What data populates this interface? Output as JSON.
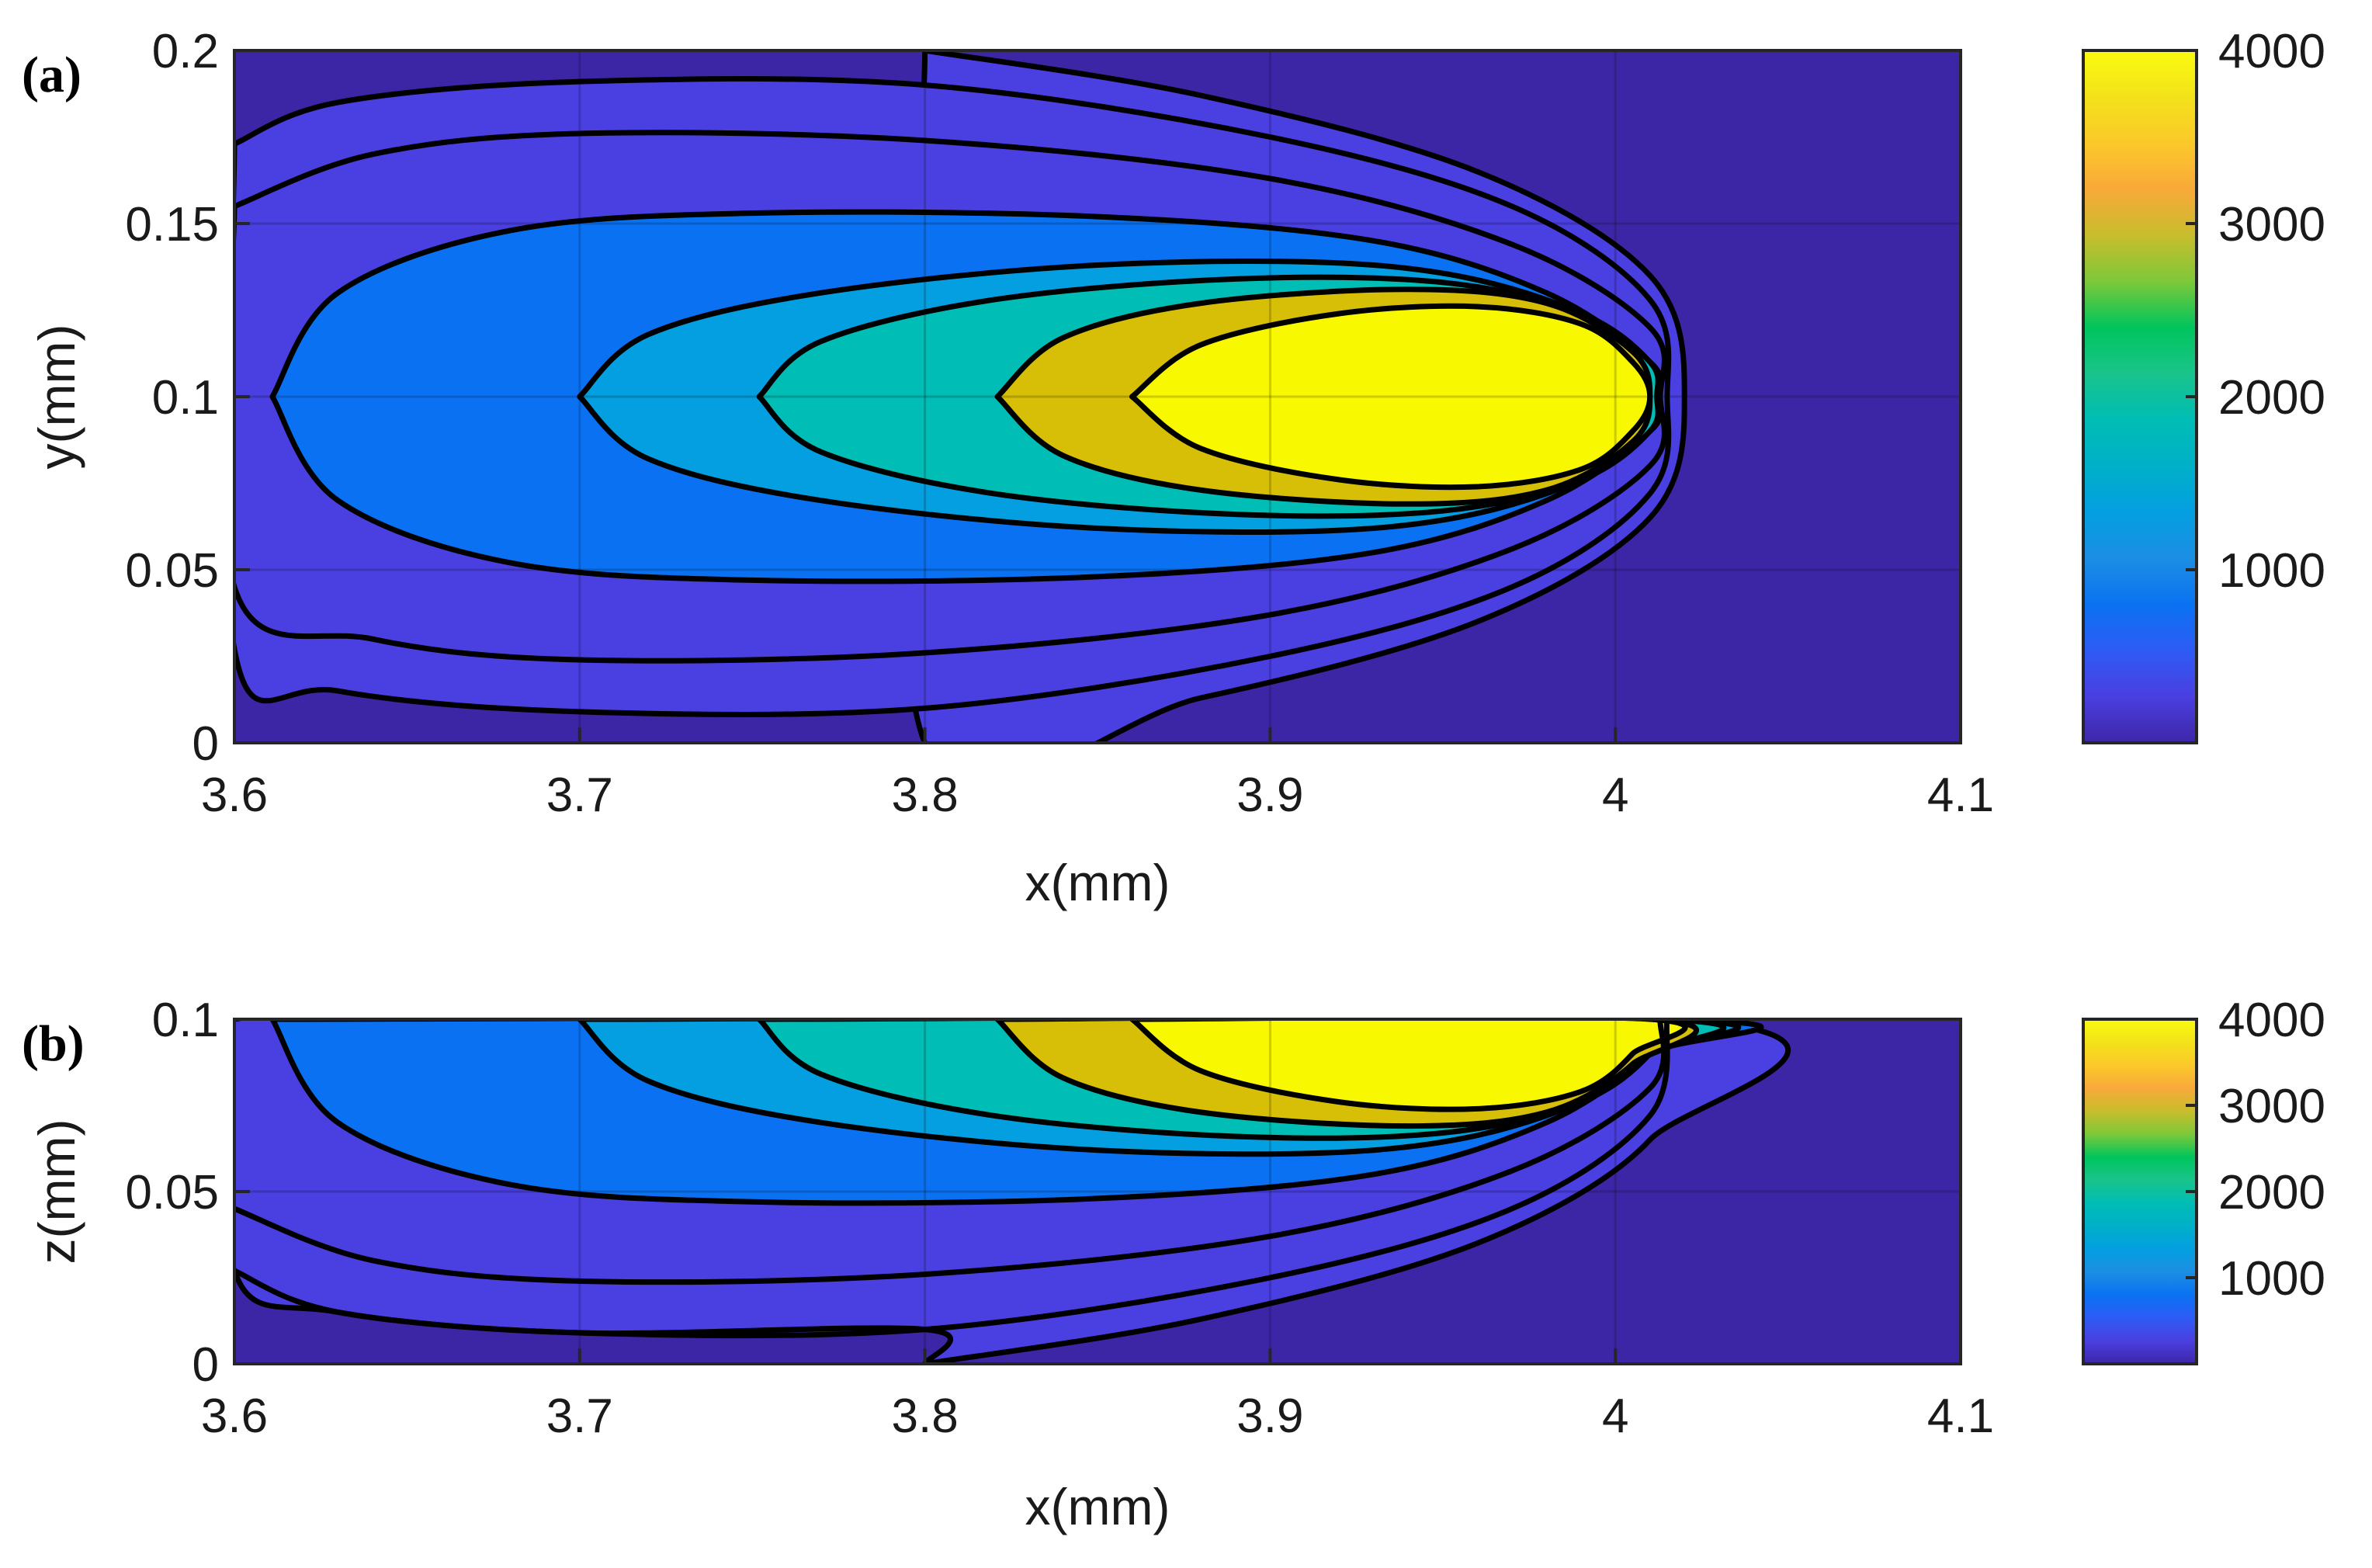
{
  "chart_data": [
    {
      "type": "heatmap",
      "panel_label": "(a)",
      "xlabel": "x(mm)",
      "ylabel": "y(mm)",
      "xlim": [
        3.6,
        4.1
      ],
      "ylim": [
        0,
        0.2
      ],
      "x_ticks": [
        "3.6",
        "3.7",
        "3.8",
        "3.9",
        "4",
        "4.1"
      ],
      "y_ticks": [
        "0",
        "0.05",
        "0.1",
        "0.15",
        "0.2"
      ],
      "grid": true,
      "background_color": "#3d26a6",
      "contour_levels": [
        {
          "color": "#4a3fe0",
          "boundary": [
            [
              3.8,
              0.2
            ],
            [
              3.88,
              0.187
            ],
            [
              3.96,
              0.165
            ],
            [
              4.01,
              0.135
            ],
            [
              4.02,
              0.1
            ],
            [
              4.01,
              0.065
            ],
            [
              3.96,
              0.035
            ],
            [
              3.88,
              0.013
            ],
            [
              3.8,
              0.0
            ]
          ]
        },
        {
          "color": "#4a3fe0",
          "boundary": [
            [
              3.6,
              0.173
            ],
            [
              3.63,
              0.185
            ],
            [
              3.7,
              0.191
            ],
            [
              3.8,
              0.19
            ],
            [
              3.9,
              0.175
            ],
            [
              3.97,
              0.155
            ],
            [
              4.01,
              0.128
            ],
            [
              4.015,
              0.1
            ],
            [
              4.01,
              0.072
            ],
            [
              3.97,
              0.045
            ],
            [
              3.9,
              0.025
            ],
            [
              3.8,
              0.01
            ],
            [
              3.7,
              0.009
            ],
            [
              3.63,
              0.015
            ],
            [
              3.6,
              0.027
            ]
          ]
        },
        {
          "color": "#4a3fe0",
          "boundary": [
            [
              3.6,
              0.155
            ],
            [
              3.64,
              0.17
            ],
            [
              3.7,
              0.176
            ],
            [
              3.8,
              0.174
            ],
            [
              3.9,
              0.163
            ],
            [
              3.97,
              0.144
            ],
            [
              4.01,
              0.12
            ],
            [
              4.013,
              0.1
            ],
            [
              4.01,
              0.08
            ],
            [
              3.97,
              0.056
            ],
            [
              3.9,
              0.037
            ],
            [
              3.8,
              0.026
            ],
            [
              3.7,
              0.024
            ],
            [
              3.64,
              0.03
            ],
            [
              3.6,
              0.045
            ]
          ]
        },
        {
          "color": "#0a72f2",
          "boundary": [
            [
              3.611,
              0.1
            ],
            [
              3.63,
              0.13
            ],
            [
              3.68,
              0.148
            ],
            [
              3.75,
              0.153
            ],
            [
              3.85,
              0.152
            ],
            [
              3.93,
              0.145
            ],
            [
              3.98,
              0.13
            ],
            [
              4.01,
              0.11
            ],
            [
              4.012,
              0.1
            ],
            [
              4.01,
              0.09
            ],
            [
              3.98,
              0.07
            ],
            [
              3.93,
              0.055
            ],
            [
              3.85,
              0.048
            ],
            [
              3.75,
              0.047
            ],
            [
              3.68,
              0.052
            ],
            [
              3.63,
              0.07
            ]
          ]
        },
        {
          "color": "#049fe1",
          "boundary": [
            [
              3.7,
              0.1
            ],
            [
              3.72,
              0.118
            ],
            [
              3.77,
              0.13
            ],
            [
              3.85,
              0.138
            ],
            [
              3.93,
              0.138
            ],
            [
              3.98,
              0.128
            ],
            [
              4.01,
              0.11
            ],
            [
              4.012,
              0.1
            ],
            [
              4.01,
              0.09
            ],
            [
              3.98,
              0.072
            ],
            [
              3.93,
              0.062
            ],
            [
              3.85,
              0.062
            ],
            [
              3.77,
              0.07
            ],
            [
              3.72,
              0.082
            ]
          ]
        },
        {
          "color": "#00bdb5",
          "boundary": [
            [
              3.752,
              0.1
            ],
            [
              3.77,
              0.116
            ],
            [
              3.82,
              0.128
            ],
            [
              3.89,
              0.134
            ],
            [
              3.95,
              0.133
            ],
            [
              3.99,
              0.124
            ],
            [
              4.01,
              0.11
            ],
            [
              4.012,
              0.1
            ],
            [
              4.01,
              0.09
            ],
            [
              3.99,
              0.076
            ],
            [
              3.95,
              0.067
            ],
            [
              3.89,
              0.066
            ],
            [
              3.82,
              0.072
            ],
            [
              3.77,
              0.084
            ]
          ]
        },
        {
          "color": "#d6bf06",
          "boundary": [
            [
              3.821,
              0.1
            ],
            [
              3.84,
              0.117
            ],
            [
              3.88,
              0.127
            ],
            [
              3.94,
              0.131
            ],
            [
              3.98,
              0.127
            ],
            [
              4.005,
              0.113
            ],
            [
              4.01,
              0.1
            ],
            [
              4.005,
              0.087
            ],
            [
              3.98,
              0.073
            ],
            [
              3.94,
              0.069
            ],
            [
              3.88,
              0.073
            ],
            [
              3.84,
              0.083
            ]
          ]
        },
        {
          "color": "#f8f800",
          "boundary": [
            [
              3.86,
              0.1
            ],
            [
              3.88,
              0.115
            ],
            [
              3.92,
              0.124
            ],
            [
              3.96,
              0.126
            ],
            [
              3.99,
              0.121
            ],
            [
              4.005,
              0.11
            ],
            [
              4.01,
              0.1
            ],
            [
              4.005,
              0.09
            ],
            [
              3.99,
              0.079
            ],
            [
              3.96,
              0.074
            ],
            [
              3.92,
              0.076
            ],
            [
              3.88,
              0.085
            ]
          ]
        }
      ],
      "colorbar": {
        "ticks": [
          "1000",
          "2000",
          "3000",
          "4000"
        ],
        "range": [
          0,
          4000
        ]
      }
    },
    {
      "type": "heatmap",
      "panel_label": "(b)",
      "xlabel": "x(mm)",
      "ylabel": "z(mm)",
      "xlim": [
        3.6,
        4.1
      ],
      "ylim": [
        0,
        0.1
      ],
      "x_ticks": [
        "3.6",
        "3.7",
        "3.8",
        "3.9",
        "4",
        "4.1"
      ],
      "y_ticks": [
        "0",
        "0.05",
        "0.1"
      ],
      "grid": true,
      "background_color": "#3d26a6",
      "contour_levels": [
        {
          "color": "#4a3fe0",
          "boundary": [
            [
              3.8,
              0.0
            ],
            [
              3.88,
              0.013
            ],
            [
              3.96,
              0.035
            ],
            [
              4.01,
              0.065
            ],
            [
              4.02,
              0.1
            ],
            [
              3.6,
              0.1
            ],
            [
              3.6,
              0.027
            ],
            [
              3.63,
              0.015
            ],
            [
              3.7,
              0.009
            ],
            [
              3.8,
              0.01
            ]
          ]
        },
        {
          "color": "#0a72f2",
          "boundary": [
            [
              3.611,
              0.1
            ],
            [
              3.63,
              0.07
            ],
            [
              3.68,
              0.052
            ],
            [
              3.75,
              0.047
            ],
            [
              3.85,
              0.048
            ],
            [
              3.93,
              0.055
            ],
            [
              3.98,
              0.07
            ],
            [
              4.01,
              0.09
            ],
            [
              4.012,
              0.1
            ]
          ]
        },
        {
          "color": "#049fe1",
          "boundary": [
            [
              3.7,
              0.1
            ],
            [
              3.72,
              0.082
            ],
            [
              3.77,
              0.07
            ],
            [
              3.85,
              0.062
            ],
            [
              3.93,
              0.062
            ],
            [
              3.98,
              0.072
            ],
            [
              4.01,
              0.09
            ],
            [
              4.012,
              0.1
            ]
          ]
        },
        {
          "color": "#00bdb5",
          "boundary": [
            [
              3.752,
              0.1
            ],
            [
              3.77,
              0.084
            ],
            [
              3.82,
              0.072
            ],
            [
              3.89,
              0.066
            ],
            [
              3.95,
              0.067
            ],
            [
              3.99,
              0.076
            ],
            [
              4.01,
              0.09
            ],
            [
              4.012,
              0.1
            ]
          ]
        },
        {
          "color": "#d6bf06",
          "boundary": [
            [
              3.821,
              0.1
            ],
            [
              3.84,
              0.083
            ],
            [
              3.88,
              0.073
            ],
            [
              3.94,
              0.069
            ],
            [
              3.98,
              0.073
            ],
            [
              4.005,
              0.087
            ],
            [
              4.01,
              0.1
            ]
          ]
        },
        {
          "color": "#f8f800",
          "boundary": [
            [
              3.86,
              0.1
            ],
            [
              3.88,
              0.085
            ],
            [
              3.92,
              0.076
            ],
            [
              3.96,
              0.074
            ],
            [
              3.99,
              0.079
            ],
            [
              4.005,
              0.09
            ],
            [
              4.01,
              0.1
            ]
          ]
        }
      ],
      "contour_lines": [
        [
          [
            3.6,
            0.027
          ],
          [
            3.63,
            0.015
          ],
          [
            3.7,
            0.009
          ],
          [
            3.8,
            0.01
          ],
          [
            3.9,
            0.025
          ],
          [
            3.97,
            0.045
          ],
          [
            4.01,
            0.072
          ],
          [
            4.015,
            0.1
          ]
        ],
        [
          [
            3.6,
            0.045
          ],
          [
            3.64,
            0.03
          ],
          [
            3.7,
            0.024
          ],
          [
            3.8,
            0.026
          ],
          [
            3.9,
            0.037
          ],
          [
            3.97,
            0.056
          ],
          [
            4.01,
            0.08
          ],
          [
            4.013,
            0.1
          ]
        ]
      ],
      "colorbar": {
        "ticks": [
          "1000",
          "2000",
          "3000",
          "4000"
        ],
        "range": [
          0,
          4000
        ]
      }
    }
  ],
  "colormap": [
    "#3e26a8",
    "#4a3fe0",
    "#2e5bf5",
    "#0a72f2",
    "#1c8ee3",
    "#049fe1",
    "#00b0c8",
    "#00bdb5",
    "#19c48b",
    "#00c55c",
    "#7ec839",
    "#c8bd2c",
    "#f9a93a",
    "#fbc92a",
    "#f3e21a",
    "#f9fb0e"
  ]
}
